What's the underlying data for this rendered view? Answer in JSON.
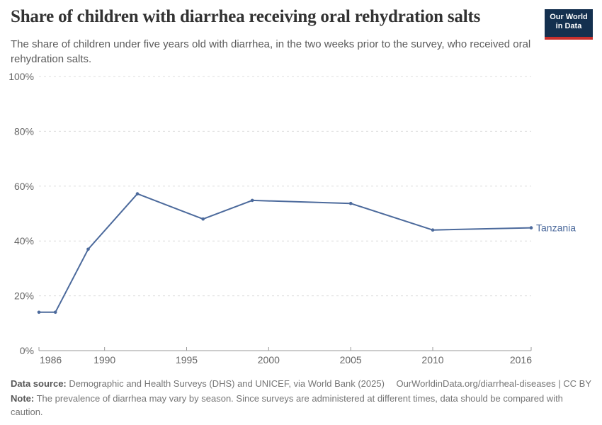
{
  "header": {
    "title": "Share of children with diarrhea receiving oral rehydration salts",
    "subtitle": "The share of children under five years old with diarrhea, in the two weeks prior to the survey, who received oral rehydration salts.",
    "logo": {
      "line1": "Our World",
      "line2": "in Data",
      "bg_color": "#14304f",
      "accent_color": "#c9302d"
    }
  },
  "chart_data": {
    "type": "line",
    "title": "Share of children with diarrhea receiving oral rehydration salts",
    "xlabel": "",
    "ylabel": "",
    "x": [
      1986,
      1987,
      1989,
      1992,
      1996,
      1999,
      2005,
      2010,
      2016
    ],
    "series": [
      {
        "name": "Tanzania",
        "color": "#4C6A9C",
        "values": [
          14,
          14,
          37,
          57.2,
          48,
          54.8,
          53.7,
          44,
          44.8
        ]
      }
    ],
    "xlim": [
      1986,
      2016
    ],
    "ylim": [
      0,
      100
    ],
    "x_ticks": [
      1986,
      1990,
      1995,
      2000,
      2005,
      2010,
      2016
    ],
    "y_ticks": [
      0,
      20,
      40,
      60,
      80,
      100
    ],
    "y_tick_suffix": "%",
    "grid": "horizontal-dashed",
    "grid_color": "#dcdcdc",
    "axis_color": "#9a9a9a",
    "legend_position": "line-end-label"
  },
  "footer": {
    "data_source_label": "Data source:",
    "data_source_text": " Demographic and Health Surveys (DHS) and UNICEF, via World Bank (2025)",
    "attribution": "OurWorldinData.org/diarrheal-diseases | CC BY",
    "note_label": "Note:",
    "note_text": " The prevalence of diarrhea may vary by season. Since surveys are administered at different times, data should be compared with caution."
  }
}
